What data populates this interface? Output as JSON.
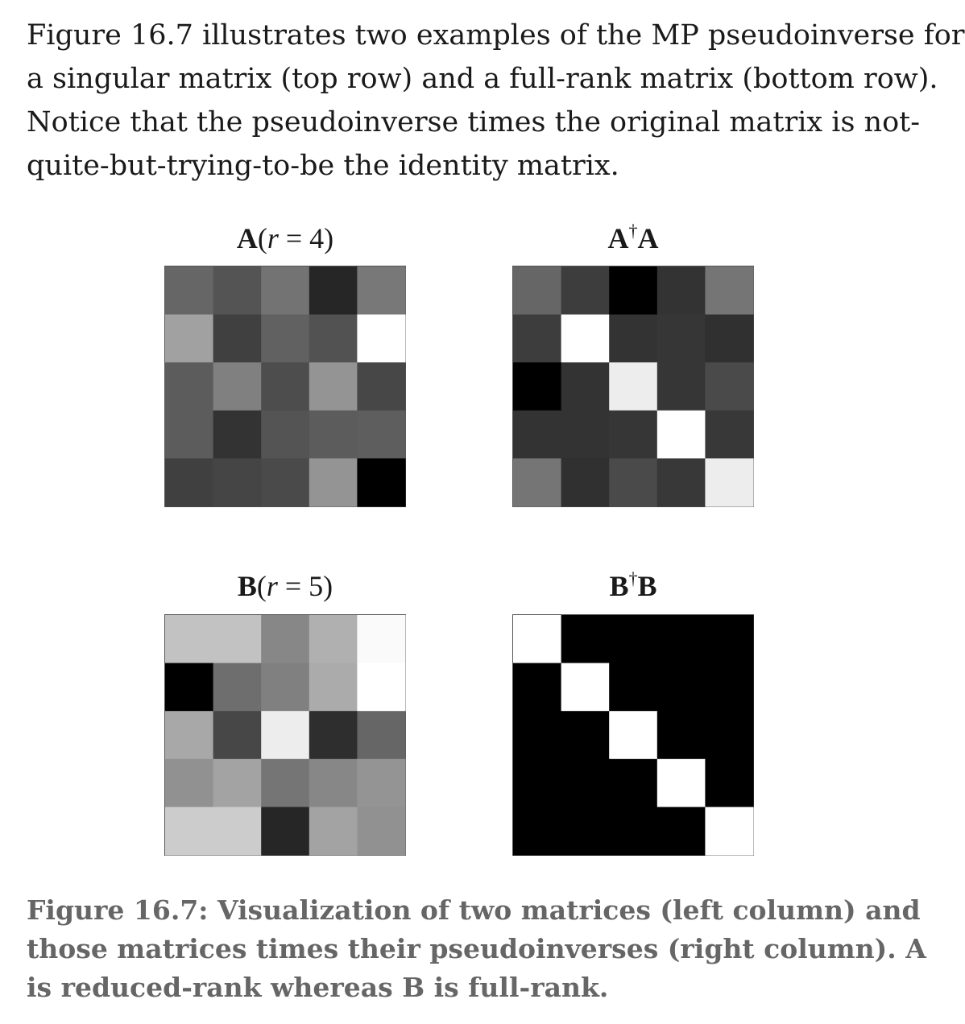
{
  "body_text": {
    "lines": [
      "Figure 16.7 illustrates two examples of the MP pseudoinverse for",
      "a singular matrix (top row) and a full-rank matrix (bottom row).",
      "Notice that the pseudoinverse times the original matrix is not-",
      "quite-but-trying-to-be the identity matrix."
    ]
  },
  "panels": {
    "a": {
      "mat": "A",
      "open": "(",
      "var": "r",
      "eq": " = 4)"
    },
    "ata": {
      "mat1": "A",
      "dagger": "†",
      "mat2": "A"
    },
    "b": {
      "mat": "B",
      "open": "(",
      "var": "r",
      "eq": " = 5)"
    },
    "btb": {
      "mat1": "B",
      "dagger": "†",
      "mat2": "B"
    }
  },
  "chart_data": [
    {
      "type": "heatmap",
      "title": "A(r = 4)",
      "colormap": "gray",
      "values": [
        [
          0.4,
          0.33,
          0.45,
          0.15,
          0.47
        ],
        [
          0.63,
          0.25,
          0.38,
          0.32,
          1.0
        ],
        [
          0.36,
          0.5,
          0.3,
          0.58,
          0.28
        ],
        [
          0.36,
          0.2,
          0.33,
          0.36,
          0.37
        ],
        [
          0.25,
          0.27,
          0.29,
          0.58,
          0.0
        ]
      ]
    },
    {
      "type": "heatmap",
      "title": "A†A",
      "colormap": "gray",
      "values": [
        [
          0.4,
          0.24,
          0.0,
          0.2,
          0.46
        ],
        [
          0.24,
          1.0,
          0.2,
          0.21,
          0.19
        ],
        [
          0.0,
          0.2,
          0.93,
          0.21,
          0.29
        ],
        [
          0.2,
          0.2,
          0.21,
          1.0,
          0.22
        ],
        [
          0.46,
          0.19,
          0.29,
          0.22,
          0.93
        ]
      ]
    },
    {
      "type": "heatmap",
      "title": "B(r = 5)",
      "colormap": "gray",
      "values": [
        [
          0.76,
          0.76,
          0.53,
          0.69,
          0.98
        ],
        [
          0.0,
          0.43,
          0.5,
          0.67,
          1.0
        ],
        [
          0.66,
          0.28,
          0.93,
          0.18,
          0.4
        ],
        [
          0.57,
          0.64,
          0.46,
          0.53,
          0.58
        ],
        [
          0.8,
          0.8,
          0.15,
          0.64,
          0.57
        ]
      ]
    },
    {
      "type": "heatmap",
      "title": "B†B",
      "colormap": "gray",
      "values": [
        [
          1,
          0,
          0,
          0,
          0
        ],
        [
          0,
          1,
          0,
          0,
          0
        ],
        [
          0,
          0,
          1,
          0,
          0
        ],
        [
          0,
          0,
          0,
          1,
          0
        ],
        [
          0,
          0,
          0,
          0,
          1
        ]
      ]
    }
  ],
  "caption": {
    "lines": [
      "Figure 16.7: Visualization of two matrices (left column) and",
      "those matrices times their pseudoinverses (right column). A",
      "is reduced-rank whereas B is full-rank."
    ]
  }
}
